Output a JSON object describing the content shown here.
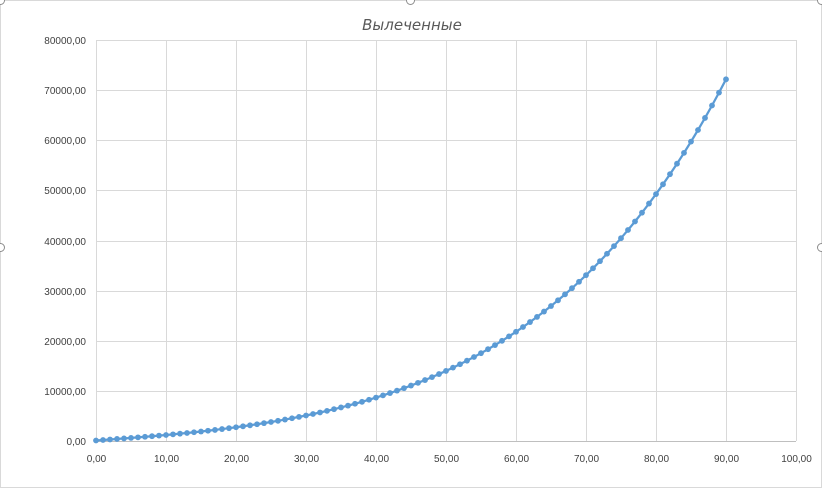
{
  "chart_data": {
    "type": "scatter",
    "title": "Вылеченные",
    "xlabel": "",
    "ylabel": "",
    "xlim": [
      0,
      100
    ],
    "ylim": [
      0,
      80000
    ],
    "x_tick_values": [
      0,
      10,
      20,
      30,
      40,
      50,
      60,
      70,
      80,
      90,
      100
    ],
    "x_tick_labels": [
      "0,00",
      "10,00",
      "20,00",
      "30,00",
      "40,00",
      "50,00",
      "60,00",
      "70,00",
      "80,00",
      "90,00",
      "100,00"
    ],
    "y_tick_values": [
      0,
      10000,
      20000,
      30000,
      40000,
      50000,
      60000,
      70000,
      80000
    ],
    "y_tick_labels": [
      "0,00",
      "10000,00",
      "20000,00",
      "30000,00",
      "40000,00",
      "50000,00",
      "60000,00",
      "70000,00",
      "80000,00"
    ],
    "grid": true,
    "marker": "circle",
    "line": "smooth",
    "series_color": "#5b9bd5",
    "series": [
      {
        "x": [
          0,
          1,
          2,
          3,
          4,
          5,
          6,
          7,
          8,
          9,
          10,
          11,
          12,
          13,
          14,
          15,
          16,
          17,
          18,
          19,
          20,
          21,
          22,
          23,
          24,
          25,
          26,
          27,
          28,
          29,
          30,
          31,
          32,
          33,
          34,
          35,
          36,
          37,
          38,
          39,
          40,
          41,
          42,
          43,
          44,
          45,
          46,
          47,
          48,
          49,
          50,
          51,
          52,
          53,
          54,
          55,
          56,
          57,
          58,
          59,
          60,
          61,
          62,
          63,
          64,
          65,
          66,
          67,
          68,
          69,
          70,
          71,
          72,
          73,
          74,
          75,
          76,
          77,
          78,
          79,
          80,
          81,
          82,
          83,
          84,
          85,
          86,
          87,
          88,
          89,
          90
        ],
        "y": [
          100,
          202,
          304,
          407,
          512,
          619,
          729,
          841,
          957,
          1077,
          1200,
          1328,
          1461,
          1599,
          1743,
          1892,
          2048,
          2211,
          2380,
          2557,
          2741,
          2934,
          3135,
          3344,
          3563,
          3791,
          4029,
          4278,
          4537,
          4808,
          5090,
          5384,
          5691,
          6011,
          6344,
          6691,
          7053,
          7430,
          7823,
          8232,
          8658,
          9101,
          9562,
          10042,
          10541,
          11060,
          11600,
          12161,
          12745,
          13352,
          13982,
          14637,
          15317,
          16024,
          16758,
          17520,
          18312,
          19134,
          19987,
          20872,
          21791,
          22744,
          23733,
          24759,
          25823,
          26927,
          28072,
          29259,
          30490,
          31766,
          33089,
          34460,
          35881,
          37354,
          38880,
          40461,
          42099,
          43795,
          45553,
          47373,
          49257,
          51209,
          53230,
          55321,
          57487,
          59728,
          62047,
          64447,
          66931,
          69500,
          72159
        ]
      }
    ]
  }
}
